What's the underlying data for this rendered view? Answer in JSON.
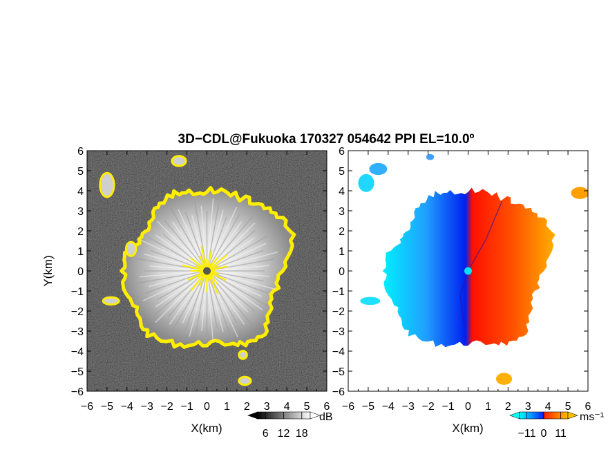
{
  "title": "3D−CDL@Fukuoka 170327 054642 PPI EL=10.0º",
  "chart_data": [
    {
      "type": "heatmap",
      "name": "reflectivity-ppi",
      "xlabel": "X(km)",
      "ylabel": "Y(km)",
      "xlim": [
        -6,
        6
      ],
      "ylim": [
        -6,
        6
      ],
      "x_ticks": [
        "−6",
        "−5",
        "−4",
        "−3",
        "−2",
        "−1",
        "0",
        "1",
        "2",
        "3",
        "4",
        "5",
        "6"
      ],
      "y_ticks": [
        "−6",
        "−5",
        "−4",
        "−3",
        "−2",
        "−1",
        "0",
        "1",
        "2",
        "3",
        "4",
        "5",
        "6"
      ],
      "background": "noise (near-black speckle)",
      "echo_boundary_color": "#ffee00",
      "colorbar": {
        "unit": "dB",
        "ticks": [
          "6",
          "12",
          "18"
        ],
        "scale": "grayscale (black to white)",
        "extend": "both"
      },
      "radar_center": [
        0,
        0
      ]
    },
    {
      "type": "heatmap",
      "name": "doppler-velocity-ppi",
      "xlabel": "X(km)",
      "ylabel": "",
      "xlim": [
        -6,
        6
      ],
      "ylim": [
        -6,
        6
      ],
      "x_ticks": [
        "−6",
        "−5",
        "−4",
        "−3",
        "−2",
        "−1",
        "0",
        "1",
        "2",
        "3",
        "4",
        "5",
        "6"
      ],
      "y_ticks": [
        "−6",
        "−5",
        "−4",
        "−3",
        "−2",
        "−1",
        "0",
        "1",
        "2",
        "3",
        "4",
        "5",
        "6"
      ],
      "background": "white (no data)",
      "colorbar": {
        "unit": "ms⁻¹",
        "ticks": [
          "−11",
          "0",
          "11"
        ],
        "scale": "cyan-blue (negative) to red-orange (positive)",
        "extend": "both",
        "colors": [
          "#00ffff",
          "#0090ff",
          "#0020ff",
          "#ff2000",
          "#ff7000",
          "#ffc000"
        ]
      },
      "radar_center": [
        0,
        0
      ]
    }
  ]
}
